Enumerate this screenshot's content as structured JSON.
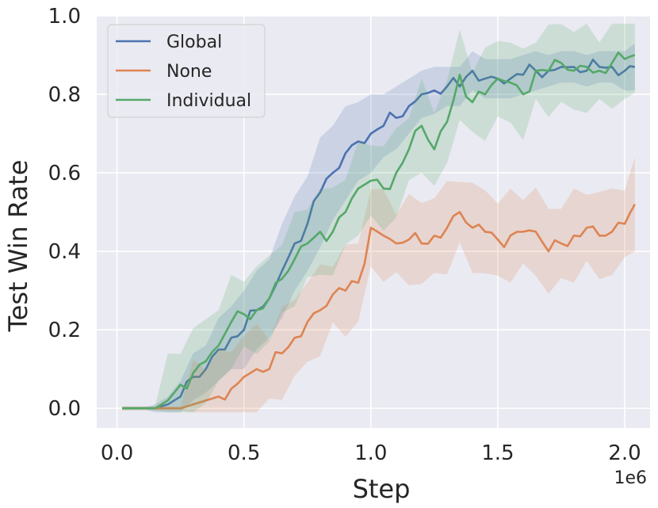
{
  "chart_data": {
    "type": "line",
    "title": "",
    "xlabel": "Step",
    "ylabel": "Test Win Rate",
    "x_offset_label": "1e6",
    "xlim": [
      -0.08,
      2.1
    ],
    "ylim": [
      -0.05,
      1.0
    ],
    "xticks": [
      0.0,
      0.5,
      1.0,
      1.5,
      2.0
    ],
    "xtick_labels": [
      "0.0",
      "0.5",
      "1.0",
      "1.5",
      "2.0"
    ],
    "yticks": [
      0.0,
      0.2,
      0.4,
      0.6,
      0.8,
      1.0
    ],
    "ytick_labels": [
      "0.0",
      "0.2",
      "0.4",
      "0.6",
      "0.8",
      "1.0"
    ],
    "grid": true,
    "legend_position": "top-left",
    "style": {
      "background": "#eaeaf2",
      "grid_color": "#ffffff"
    },
    "x": [
      0.02,
      0.1,
      0.15,
      0.2,
      0.25,
      0.3,
      0.35,
      0.4,
      0.45,
      0.5,
      0.55,
      0.6,
      0.65,
      0.7,
      0.75,
      0.8,
      0.85,
      0.9,
      0.95,
      1.0,
      1.05,
      1.1,
      1.15,
      1.2,
      1.25,
      1.3,
      1.35,
      1.4,
      1.45,
      1.5,
      1.55,
      1.6,
      1.65,
      1.7,
      1.75,
      1.8,
      1.85,
      1.9,
      1.95,
      2.0,
      2.04
    ],
    "series": [
      {
        "name": "Global",
        "color": "#4c72b0",
        "values": [
          0.0,
          0.0,
          0.0,
          0.01,
          0.03,
          0.08,
          0.1,
          0.15,
          0.18,
          0.2,
          0.25,
          0.28,
          0.35,
          0.42,
          0.47,
          0.55,
          0.6,
          0.65,
          0.68,
          0.7,
          0.72,
          0.74,
          0.77,
          0.8,
          0.81,
          0.82,
          0.82,
          0.86,
          0.84,
          0.84,
          0.84,
          0.85,
          0.86,
          0.86,
          0.87,
          0.87,
          0.86,
          0.87,
          0.87,
          0.86,
          0.87
        ],
        "band": [
          0.0,
          0.0,
          0.01,
          0.02,
          0.04,
          0.06,
          0.06,
          0.08,
          0.08,
          0.1,
          0.1,
          0.1,
          0.12,
          0.12,
          0.12,
          0.14,
          0.12,
          0.12,
          0.1,
          0.1,
          0.08,
          0.08,
          0.07,
          0.06,
          0.06,
          0.05,
          0.05,
          0.05,
          0.05,
          0.05,
          0.05,
          0.05,
          0.05,
          0.04,
          0.04,
          0.04,
          0.04,
          0.04,
          0.04,
          0.05,
          0.06
        ]
      },
      {
        "name": "None",
        "color": "#dd8452",
        "values": [
          0.0,
          0.0,
          0.0,
          0.0,
          0.0,
          0.01,
          0.02,
          0.03,
          0.05,
          0.08,
          0.1,
          0.1,
          0.14,
          0.18,
          0.22,
          0.25,
          0.29,
          0.3,
          0.32,
          0.46,
          0.44,
          0.42,
          0.43,
          0.42,
          0.44,
          0.46,
          0.5,
          0.46,
          0.45,
          0.43,
          0.44,
          0.45,
          0.45,
          0.4,
          0.42,
          0.44,
          0.46,
          0.44,
          0.45,
          0.47,
          0.52
        ]
      },
      {
        "name": "Individual",
        "color": "#55a868",
        "values": [
          0.0,
          0.0,
          0.0,
          0.02,
          0.06,
          0.09,
          0.12,
          0.16,
          0.22,
          0.24,
          0.25,
          0.28,
          0.33,
          0.38,
          0.42,
          0.45,
          0.45,
          0.5,
          0.56,
          0.58,
          0.56,
          0.6,
          0.66,
          0.72,
          0.66,
          0.73,
          0.85,
          0.78,
          0.8,
          0.84,
          0.83,
          0.8,
          0.86,
          0.86,
          0.88,
          0.86,
          0.87,
          0.86,
          0.88,
          0.89,
          0.9
        ]
      }
    ]
  }
}
